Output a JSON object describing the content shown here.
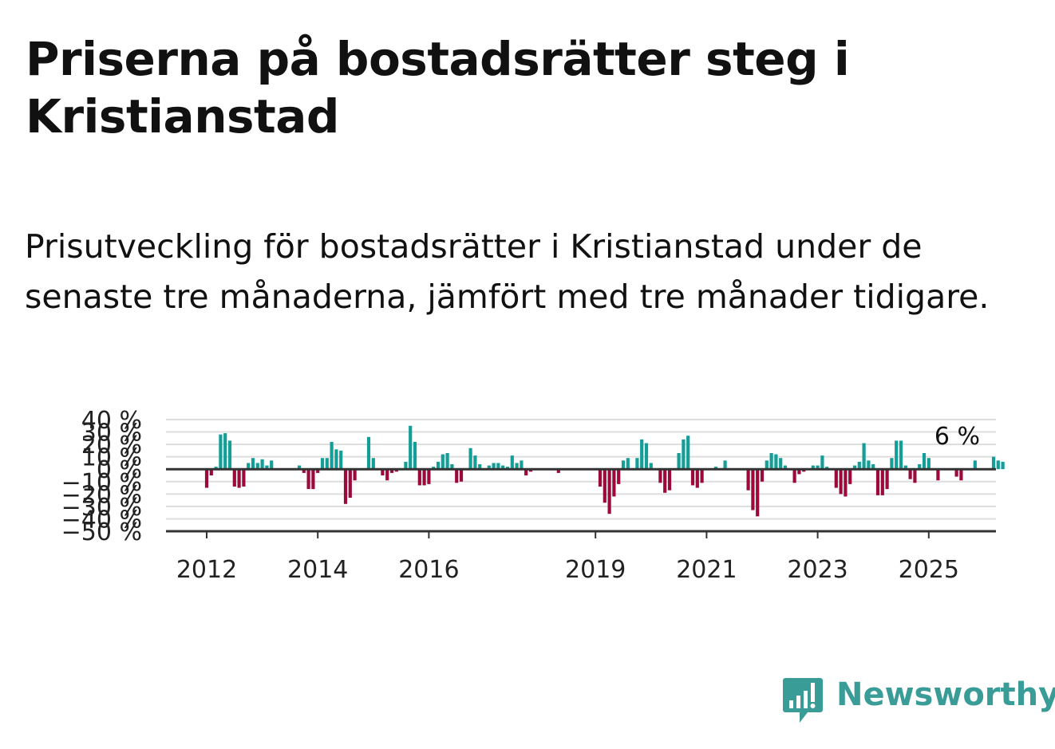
{
  "title": "Priserna på bostadsrätter steg i Kristianstad",
  "subtitle": "Prisutveckling för bostadsrätter i Kristianstad under de senaste tre månaderna, jämfört med tre månader tidigare.",
  "brand": {
    "name": "Newsworthy",
    "color": "#3a9c97",
    "icon": "newsworthy-logo-icon"
  },
  "colors": {
    "positive": "#159e97",
    "negative": "#9b0a3b",
    "grid": "#dddddd",
    "axis": "#333333"
  },
  "chart_data": {
    "type": "bar",
    "x_start": "2012-01",
    "interval": "month",
    "x_ticks": [
      "2012",
      "2014",
      "2016",
      "2019",
      "2021",
      "2023",
      "2025"
    ],
    "y_ticks": [
      "40 %",
      "30 %",
      "20 %",
      "10 %",
      "0 %",
      "−10 %",
      "−20 %",
      "−30 %",
      "−40 %",
      "−50 %"
    ],
    "ylim": [
      -50,
      40
    ],
    "grid": true,
    "last_value_label": "6 %",
    "values": [
      -15,
      -5,
      2,
      28,
      29,
      23,
      -14,
      -15,
      -14,
      5,
      9,
      5,
      8,
      3,
      7,
      0,
      0,
      0,
      0,
      0,
      3,
      -3,
      -16,
      -16,
      -3,
      9,
      9,
      22,
      16,
      15,
      -28,
      -23,
      -9,
      0,
      0,
      26,
      9,
      0,
      -5,
      -9,
      -3,
      -2,
      0,
      6,
      35,
      22,
      -13,
      -13,
      -12,
      2,
      6,
      12,
      13,
      4,
      -11,
      -10,
      0,
      17,
      11,
      4,
      0,
      3,
      5,
      5,
      3,
      2,
      11,
      5,
      7,
      -5,
      -2,
      0,
      0,
      0,
      0,
      0,
      -3,
      0,
      0,
      0,
      0,
      0,
      0,
      0,
      0,
      -14,
      -27,
      -36,
      -22,
      -12,
      7,
      9,
      0,
      9,
      24,
      21,
      5,
      0,
      -11,
      -19,
      -17,
      0,
      13,
      24,
      27,
      -13,
      -15,
      -11,
      0,
      0,
      2,
      0,
      7,
      0,
      0,
      0,
      0,
      -17,
      -33,
      -38,
      -10,
      7,
      13,
      12,
      9,
      3,
      0,
      -11,
      -4,
      -2,
      0,
      3,
      3,
      11,
      2,
      0,
      -15,
      -20,
      -22,
      -12,
      3,
      6,
      21,
      7,
      4,
      -21,
      -21,
      -16,
      9,
      23,
      23,
      3,
      -8,
      -11,
      4,
      13,
      9,
      0,
      -9,
      0,
      0,
      0,
      -6,
      -9,
      0,
      0,
      7,
      0,
      0,
      0,
      10,
      7,
      6
    ]
  }
}
